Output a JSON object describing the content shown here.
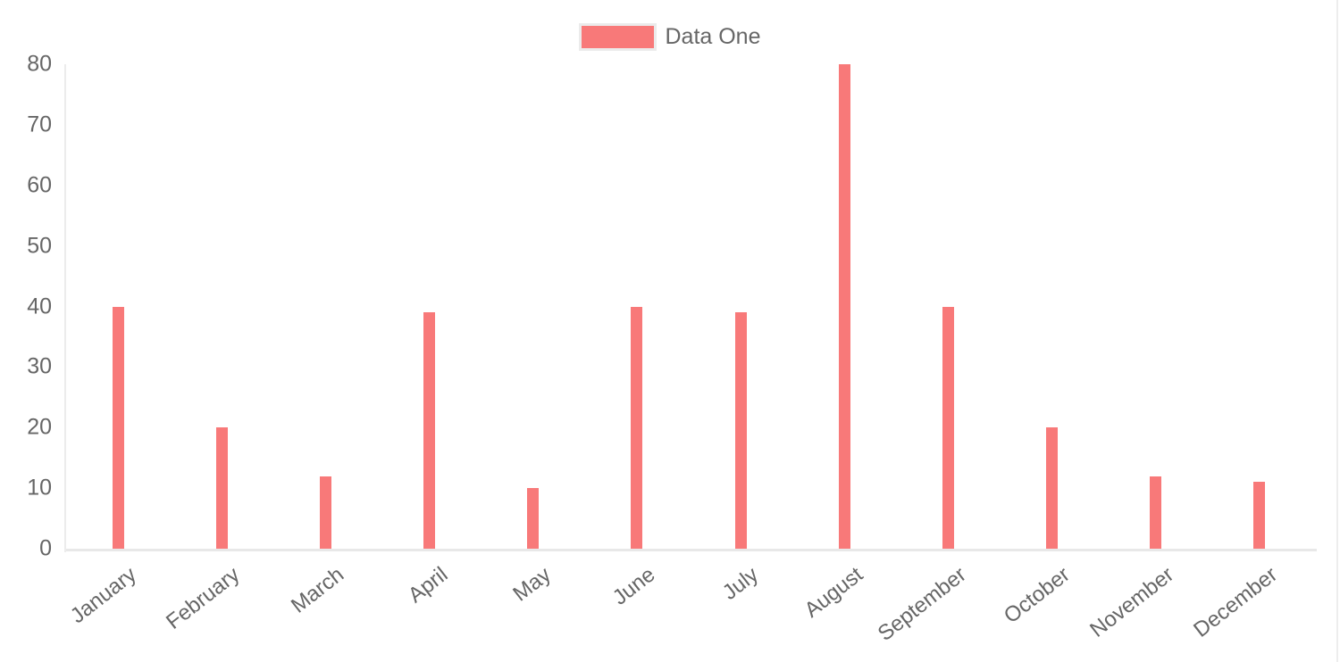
{
  "legend": {
    "label": "Data One",
    "swatch_color": "#f87979"
  },
  "chart_data": {
    "type": "bar",
    "title": "",
    "xlabel": "",
    "ylabel": "",
    "categories": [
      "January",
      "February",
      "March",
      "April",
      "May",
      "June",
      "July",
      "August",
      "September",
      "October",
      "November",
      "December"
    ],
    "series": [
      {
        "name": "Data One",
        "color": "#f87979",
        "values": [
          40,
          20,
          12,
          39,
          10,
          40,
          39,
          80,
          40,
          20,
          12,
          11
        ]
      }
    ],
    "ylim": [
      0,
      80
    ],
    "y_ticks": [
      0,
      10,
      20,
      30,
      40,
      50,
      60,
      70,
      80
    ],
    "grid": false,
    "legend_position": "top",
    "x_label_rotation_deg": -38
  },
  "colors": {
    "bar": "#f87979",
    "axis_line": "#e8e8e8",
    "tick_text": "#666666",
    "background": "#ffffff"
  }
}
